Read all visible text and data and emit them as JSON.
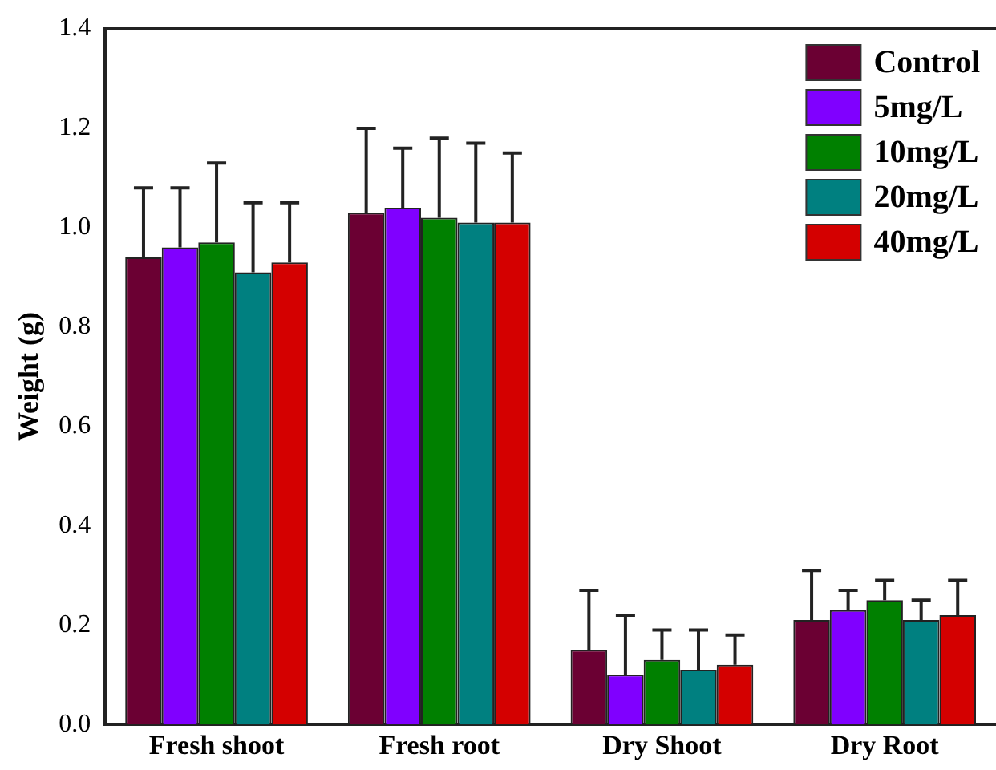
{
  "chart_data": {
    "type": "bar",
    "ylabel": "Weight (g)",
    "categories": [
      "Fresh shoot",
      "Fresh root",
      "Dry Shoot",
      "Dry Root"
    ],
    "series": [
      {
        "name": "Control",
        "color": "#6b0033",
        "values": [
          0.94,
          1.03,
          0.15,
          0.21
        ],
        "errors": [
          0.14,
          0.17,
          0.12,
          0.1
        ]
      },
      {
        "name": "5mg/L",
        "color": "#8000ff",
        "values": [
          0.96,
          1.04,
          0.1,
          0.23
        ],
        "errors": [
          0.12,
          0.12,
          0.12,
          0.04
        ]
      },
      {
        "name": "10mg/L",
        "color": "#008000",
        "values": [
          0.97,
          1.02,
          0.13,
          0.25
        ],
        "errors": [
          0.16,
          0.16,
          0.06,
          0.04
        ]
      },
      {
        "name": "20mg/L",
        "color": "#008080",
        "values": [
          0.91,
          1.01,
          0.11,
          0.21
        ],
        "errors": [
          0.14,
          0.16,
          0.08,
          0.04
        ]
      },
      {
        "name": "40mg/L",
        "color": "#d40000",
        "values": [
          0.93,
          1.01,
          0.12,
          0.22
        ],
        "errors": [
          0.12,
          0.14,
          0.06,
          0.07
        ]
      }
    ],
    "ylim": [
      0,
      1.4
    ],
    "yticks": [
      {
        "value": 0,
        "label": "0.0"
      },
      {
        "value": 0.2,
        "label": "0.2"
      },
      {
        "value": 0.4,
        "label": "0.4"
      },
      {
        "value": 0.6,
        "label": "0.6"
      },
      {
        "value": 0.8,
        "label": "0.8"
      },
      {
        "value": 1.0,
        "label": "1.0"
      },
      {
        "value": 1.2,
        "label": "1.2"
      },
      {
        "value": 1.4,
        "label": "1.4"
      }
    ],
    "grid": false,
    "legend": "top right"
  }
}
